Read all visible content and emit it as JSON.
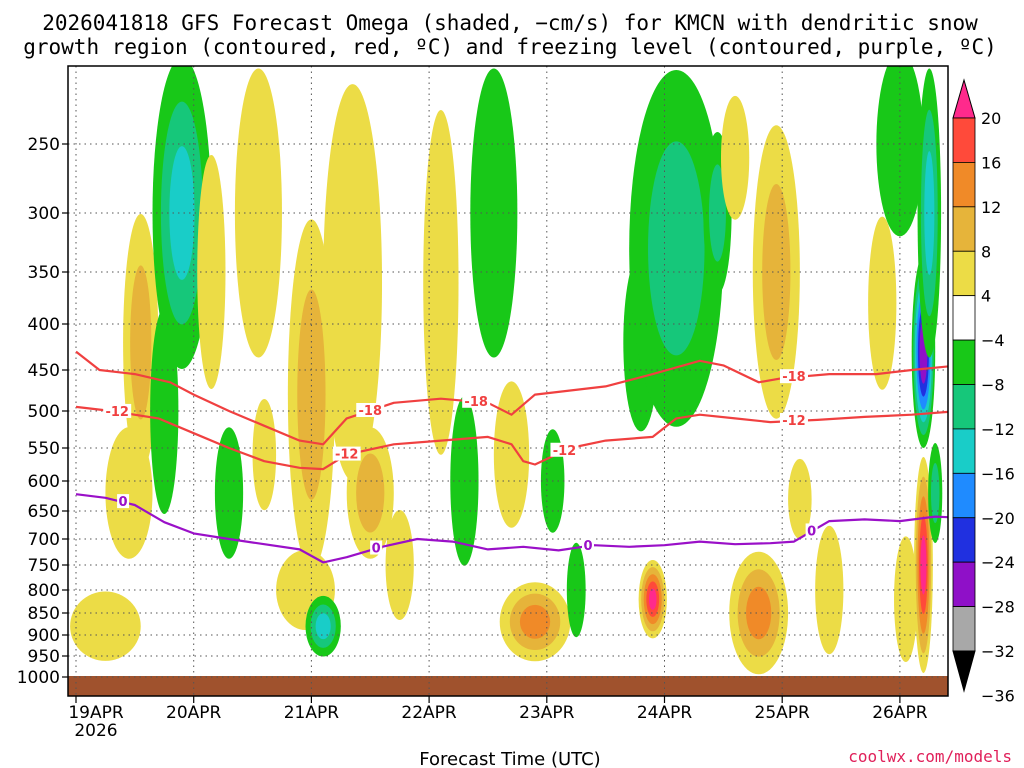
{
  "chart_data": {
    "type": "heatmap",
    "title_line1": "2026041818 GFS Forecast Omega (shaded, −cm/s) for KMCN with dendritic snow",
    "title_line2": "growth region (contoured, red, ºC) and freezing level (contoured, purple, ºC)",
    "xlabel": "Forecast Time (UTC)",
    "ylabel": "",
    "x_ticks": [
      "19APR",
      "20APR",
      "21APR",
      "22APR",
      "23APR",
      "24APR",
      "25APR",
      "26APR"
    ],
    "x_year": "2026",
    "x_range_days": [
      0,
      7.5
    ],
    "y_ticks": [
      "250",
      "300",
      "350",
      "400",
      "450",
      "500",
      "550",
      "600",
      "650",
      "700",
      "750",
      "800",
      "850",
      "900",
      "950",
      "1000"
    ],
    "y_range_hpa": [
      200,
      1000
    ],
    "colorbar_labels": [
      "20",
      "16",
      "12",
      "8",
      "4",
      "−4",
      "−8",
      "−12",
      "−16",
      "−20",
      "−24",
      "−28",
      "−32",
      "−36"
    ],
    "colorbar_colors": [
      "#ff2a8c",
      "#ff4a3a",
      "#f08a28",
      "#e6b43a",
      "#ecdc46",
      "#ffffff",
      "#18c818",
      "#16c77a",
      "#19cdc8",
      "#1f8bff",
      "#2030e0",
      "#8f10c8",
      "#a8a8a8"
    ],
    "omega_cells": [
      {
        "t": 0.25,
        "p": 880,
        "dt": 0.3,
        "dp": 140,
        "v": 6
      },
      {
        "t": 0.55,
        "p": 420,
        "dt": 0.15,
        "dp": 260,
        "v": 10
      },
      {
        "t": 0.45,
        "p": 620,
        "dt": 0.2,
        "dp": 200,
        "v": 5
      },
      {
        "t": 0.9,
        "p": 300,
        "dt": 0.25,
        "dp": 300,
        "v": -12
      },
      {
        "t": 0.75,
        "p": 500,
        "dt": 0.12,
        "dp": 250,
        "v": -7
      },
      {
        "t": 1.15,
        "p": 350,
        "dt": 0.12,
        "dp": 200,
        "v": 6
      },
      {
        "t": 1.3,
        "p": 620,
        "dt": 0.12,
        "dp": 200,
        "v": -7
      },
      {
        "t": 1.55,
        "p": 300,
        "dt": 0.2,
        "dp": 250,
        "v": 5
      },
      {
        "t": 1.6,
        "p": 560,
        "dt": 0.1,
        "dp": 150,
        "v": 7
      },
      {
        "t": 2.0,
        "p": 480,
        "dt": 0.2,
        "dp": 400,
        "v": 11
      },
      {
        "t": 1.95,
        "p": 800,
        "dt": 0.25,
        "dp": 150,
        "v": 5
      },
      {
        "t": 2.1,
        "p": 880,
        "dt": 0.15,
        "dp": 120,
        "v": -14
      },
      {
        "t": 2.35,
        "p": 360,
        "dt": 0.25,
        "dp": 400,
        "v": 7
      },
      {
        "t": 2.5,
        "p": 620,
        "dt": 0.2,
        "dp": 200,
        "v": 9
      },
      {
        "t": 2.75,
        "p": 750,
        "dt": 0.12,
        "dp": 200,
        "v": 5
      },
      {
        "t": 3.1,
        "p": 360,
        "dt": 0.15,
        "dp": 300,
        "v": 6
      },
      {
        "t": 3.3,
        "p": 600,
        "dt": 0.12,
        "dp": 250,
        "v": -7
      },
      {
        "t": 3.55,
        "p": 300,
        "dt": 0.2,
        "dp": 250,
        "v": -6
      },
      {
        "t": 3.7,
        "p": 560,
        "dt": 0.15,
        "dp": 200,
        "v": 5
      },
      {
        "t": 3.9,
        "p": 870,
        "dt": 0.3,
        "dp": 160,
        "v": 12
      },
      {
        "t": 4.05,
        "p": 600,
        "dt": 0.1,
        "dp": 150,
        "v": -7
      },
      {
        "t": 4.25,
        "p": 800,
        "dt": 0.08,
        "dp": 180,
        "v": -6
      },
      {
        "t": 4.9,
        "p": 820,
        "dt": 0.12,
        "dp": 150,
        "v": 20
      },
      {
        "t": 4.8,
        "p": 420,
        "dt": 0.15,
        "dp": 180,
        "v": -7
      },
      {
        "t": 5.1,
        "p": 330,
        "dt": 0.4,
        "dp": 350,
        "v": -11
      },
      {
        "t": 5.45,
        "p": 300,
        "dt": 0.12,
        "dp": 120,
        "v": -8
      },
      {
        "t": 5.6,
        "p": 260,
        "dt": 0.12,
        "dp": 80,
        "v": 5
      },
      {
        "t": 5.8,
        "p": 850,
        "dt": 0.25,
        "dp": 250,
        "v": 14
      },
      {
        "t": 5.95,
        "p": 350,
        "dt": 0.2,
        "dp": 250,
        "v": 9
      },
      {
        "t": 6.15,
        "p": 630,
        "dt": 0.1,
        "dp": 120,
        "v": 5
      },
      {
        "t": 6.4,
        "p": 800,
        "dt": 0.12,
        "dp": 250,
        "v": 5
      },
      {
        "t": 6.85,
        "p": 380,
        "dt": 0.12,
        "dp": 160,
        "v": 7
      },
      {
        "t": 7.0,
        "p": 250,
        "dt": 0.2,
        "dp": 150,
        "v": -7
      },
      {
        "t": 7.05,
        "p": 820,
        "dt": 0.1,
        "dp": 250,
        "v": 7
      },
      {
        "t": 7.2,
        "p": 750,
        "dt": 0.08,
        "dp": 400,
        "v": 20
      },
      {
        "t": 7.2,
        "p": 430,
        "dt": 0.1,
        "dp": 200,
        "v": -28
      },
      {
        "t": 7.25,
        "p": 300,
        "dt": 0.1,
        "dp": 250,
        "v": -14
      },
      {
        "t": 7.3,
        "p": 620,
        "dt": 0.06,
        "dp": 150,
        "v": -9
      }
    ],
    "series": [
      {
        "name": "-18",
        "color": "#f04040",
        "x": [
          0,
          0.2,
          0.5,
          0.8,
          1.0,
          1.3,
          1.6,
          1.9,
          2.1,
          2.3,
          2.7,
          3.1,
          3.5,
          3.7,
          3.9,
          4.2,
          4.5,
          4.9,
          5.3,
          5.5,
          5.8,
          6.0,
          6.4,
          6.8,
          7.1,
          7.5
        ],
        "y": [
          430,
          450,
          455,
          465,
          480,
          500,
          520,
          540,
          545,
          510,
          490,
          485,
          490,
          505,
          480,
          475,
          470,
          455,
          440,
          445,
          465,
          460,
          455,
          455,
          450,
          445
        ],
        "label_at": [
          2.5,
          3.4,
          6.1
        ]
      },
      {
        "name": "-12",
        "color": "#f04040",
        "x": [
          0,
          0.3,
          0.7,
          1.0,
          1.3,
          1.6,
          1.9,
          2.1,
          2.3,
          2.7,
          3.1,
          3.5,
          3.7,
          3.8,
          3.9,
          4.2,
          4.5,
          4.9,
          5.1,
          5.3,
          5.6,
          5.9,
          6.3,
          6.7,
          7.1,
          7.5
        ],
        "y": [
          495,
          500,
          510,
          530,
          550,
          570,
          580,
          582,
          560,
          545,
          540,
          535,
          545,
          570,
          575,
          550,
          540,
          535,
          510,
          505,
          510,
          515,
          512,
          508,
          505,
          500
        ],
        "label_at": [
          0.35,
          2.3,
          4.15,
          6.1
        ]
      },
      {
        "name": "0",
        "color": "#9a10c8",
        "x": [
          0,
          0.25,
          0.5,
          0.75,
          1.0,
          1.3,
          1.6,
          1.9,
          2.1,
          2.3,
          2.6,
          2.9,
          3.2,
          3.5,
          3.8,
          4.1,
          4.4,
          4.7,
          5.0,
          5.3,
          5.6,
          5.9,
          6.1,
          6.4,
          6.7,
          7.0,
          7.3,
          7.5
        ],
        "y": [
          622,
          628,
          640,
          670,
          690,
          700,
          710,
          720,
          745,
          735,
          715,
          700,
          705,
          720,
          715,
          722,
          712,
          715,
          712,
          705,
          710,
          708,
          705,
          668,
          665,
          668,
          660,
          662
        ],
        "label_at": [
          0.4,
          2.55,
          4.35,
          6.25
        ]
      }
    ]
  },
  "credit": "coolwx.com/models"
}
